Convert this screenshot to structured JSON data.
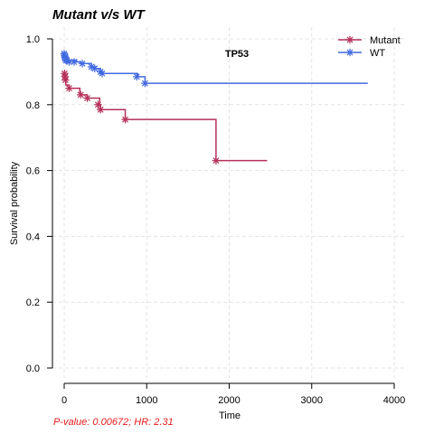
{
  "chart_data": {
    "type": "line",
    "title": "Mutant v/s WT",
    "annotation": "TP53",
    "xlabel": "Time",
    "ylabel": "Survival probability",
    "xlim": [
      0,
      4000
    ],
    "ylim": [
      0,
      1
    ],
    "xticks": [
      0,
      1000,
      2000,
      3000,
      4000
    ],
    "yticks": [
      0.0,
      0.2,
      0.4,
      0.6,
      0.8,
      1.0
    ],
    "yticklabels": [
      "0.0",
      "0.2",
      "0.4",
      "0.6",
      "0.8",
      "1.0"
    ],
    "grid": true,
    "legend_position": "top-right",
    "stats_text": "P-value: 0.00672; HR: 2.31",
    "stats_color": "#e41a1c",
    "series": [
      {
        "name": "Mutant",
        "color": "#b5315a",
        "step_x": [
          0,
          20,
          60,
          190,
          280,
          430,
          440,
          740,
          1840,
          2460
        ],
        "step_y": [
          0.88,
          0.86,
          0.85,
          0.83,
          0.82,
          0.8,
          0.785,
          0.755,
          0.63,
          0.63
        ],
        "censor_x": [
          5,
          10,
          15,
          60,
          200,
          280,
          410,
          440,
          740,
          1840
        ],
        "censor_y": [
          0.895,
          0.885,
          0.875,
          0.85,
          0.83,
          0.82,
          0.8,
          0.785,
          0.755,
          0.63
        ]
      },
      {
        "name": "WT",
        "color": "#4169e1",
        "step_x": [
          0,
          30,
          150,
          200,
          330,
          380,
          440,
          890,
          980,
          3680
        ],
        "step_y": [
          0.945,
          0.935,
          0.93,
          0.925,
          0.915,
          0.91,
          0.895,
          0.885,
          0.865,
          0.865
        ],
        "censor_x": [
          0,
          5,
          10,
          15,
          20,
          30,
          60,
          120,
          220,
          330,
          370,
          440,
          460,
          880,
          980
        ],
        "censor_y": [
          0.955,
          0.95,
          0.945,
          0.94,
          0.935,
          0.935,
          0.93,
          0.93,
          0.925,
          0.915,
          0.91,
          0.9,
          0.895,
          0.885,
          0.865
        ]
      }
    ]
  }
}
